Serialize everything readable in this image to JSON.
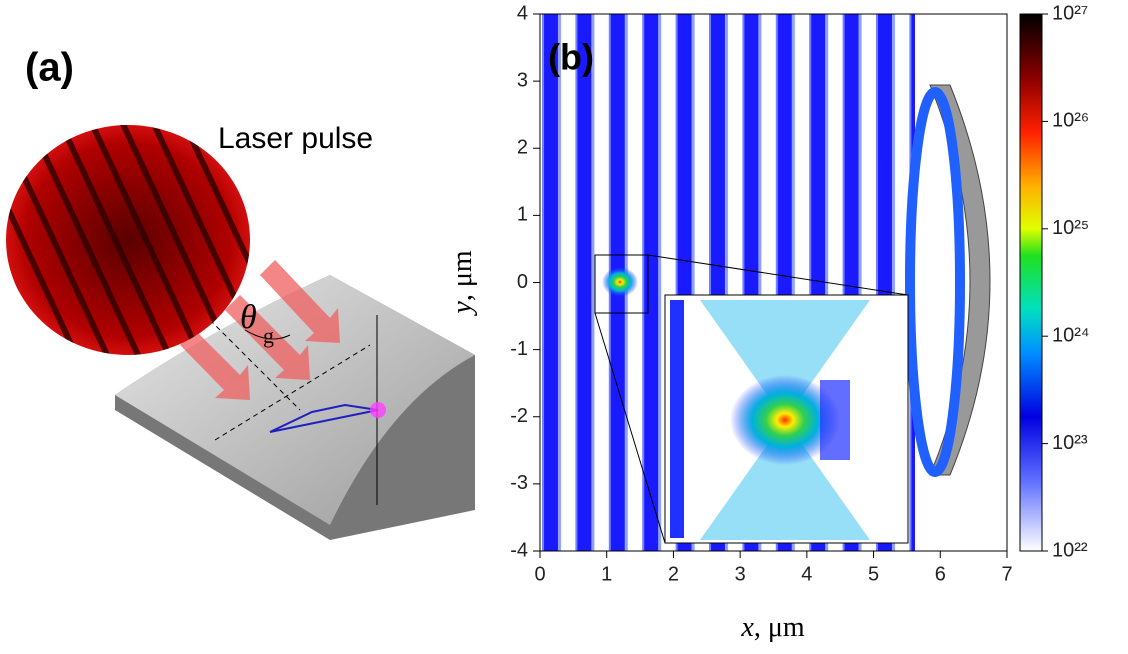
{
  "chart_data": [
    {
      "type": "illustration",
      "title": "(a)",
      "annotations": [
        "Laser pulse",
        "θ",
        "g"
      ]
    },
    {
      "type": "heatmap",
      "title": "(b)",
      "xlabel": {
        "var": "x",
        "unit": ", μm"
      },
      "ylabel": {
        "var": "y",
        "unit": ", μm"
      },
      "xlim": [
        0,
        7
      ],
      "xticks": [
        0,
        1,
        2,
        3,
        4,
        5,
        6,
        7
      ],
      "ylim": [
        -4,
        4
      ],
      "yticks": [
        -4,
        -3,
        -2,
        -1,
        0,
        1,
        2,
        3,
        4
      ],
      "colorbar": {
        "log": true,
        "lim": [
          1e+22,
          1e+27
        ],
        "ticks": [
          {
            "value": 1e+22,
            "label": "10²²"
          },
          {
            "value": 1e+23,
            "label": "10²³"
          },
          {
            "value": 1e+24,
            "label": "10²⁴"
          },
          {
            "value": 1e+25,
            "label": "10²⁵"
          },
          {
            "value": 1e+26,
            "label": "10²⁶"
          },
          {
            "value": 1e+27,
            "label": "10²⁷"
          }
        ]
      }
    }
  ]
}
